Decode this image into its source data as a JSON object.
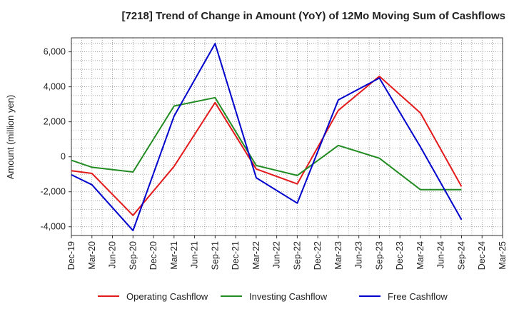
{
  "chart_data": {
    "type": "line",
    "title": "[7218]  Trend of Change in Amount (YoY) of 12Mo Moving Sum of Cashflows",
    "xlabel": "",
    "ylabel": "Amount (million yen)",
    "ylim": [
      -4500,
      6800
    ],
    "yticks": [
      -4000,
      -2000,
      0,
      2000,
      4000,
      6000
    ],
    "ytick_labels": [
      "-4,000",
      "-2,000",
      "0",
      "2,000",
      "4,000",
      "6,000"
    ],
    "grid": true,
    "legend_position": "bottom",
    "categories": [
      "Dec-19",
      "Mar-20",
      "Jun-20",
      "Sep-20",
      "Dec-20",
      "Mar-21",
      "Jun-21",
      "Sep-21",
      "Dec-21",
      "Mar-22",
      "Jun-22",
      "Sep-22",
      "Dec-22",
      "Mar-23",
      "Jun-23",
      "Sep-23",
      "Dec-23",
      "Mar-24",
      "Jun-24",
      "Sep-24",
      "Dec-24",
      "Mar-25"
    ],
    "series": [
      {
        "name": "Operating Cashflow",
        "color": "#e31a1c",
        "points": [
          [
            0,
            -800
          ],
          [
            1,
            -950
          ],
          [
            3,
            -3350
          ],
          [
            5,
            -550
          ],
          [
            7,
            3100
          ],
          [
            9,
            -700
          ],
          [
            11,
            -1550
          ],
          [
            13,
            2650
          ],
          [
            15,
            4600
          ],
          [
            17,
            2500
          ],
          [
            19,
            -1700
          ]
        ]
      },
      {
        "name": "Investing Cashflow",
        "color": "#228b22",
        "points": [
          [
            0,
            -200
          ],
          [
            1,
            -600
          ],
          [
            3,
            -870
          ],
          [
            5,
            2900
          ],
          [
            7,
            3380
          ],
          [
            9,
            -500
          ],
          [
            11,
            -1070
          ],
          [
            13,
            650
          ],
          [
            15,
            -80
          ],
          [
            17,
            -1880
          ],
          [
            19,
            -1880
          ]
        ]
      },
      {
        "name": "Free Cashflow",
        "color": "#0000cc",
        "points": [
          [
            0,
            -1030
          ],
          [
            1,
            -1600
          ],
          [
            3,
            -4220
          ],
          [
            5,
            2320
          ],
          [
            7,
            6470
          ],
          [
            9,
            -1200
          ],
          [
            11,
            -2650
          ],
          [
            13,
            3250
          ],
          [
            15,
            4500
          ],
          [
            17,
            560
          ],
          [
            19,
            -3600
          ]
        ]
      }
    ]
  }
}
